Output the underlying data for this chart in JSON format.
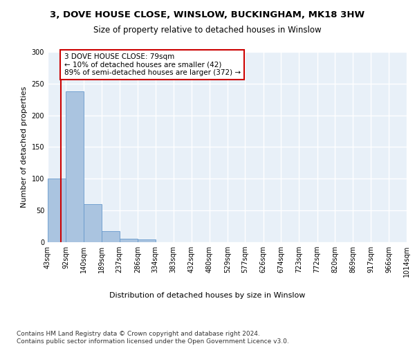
{
  "title1": "3, DOVE HOUSE CLOSE, WINSLOW, BUCKINGHAM, MK18 3HW",
  "title2": "Size of property relative to detached houses in Winslow",
  "xlabel": "Distribution of detached houses by size in Winslow",
  "ylabel": "Number of detached properties",
  "bin_edges": [
    43,
    92,
    140,
    189,
    237,
    286,
    334,
    383,
    432,
    480,
    529,
    577,
    626,
    674,
    723,
    772,
    820,
    869,
    917,
    966,
    1014
  ],
  "bar_heights": [
    100,
    238,
    60,
    17,
    6,
    4,
    0,
    0,
    0,
    0,
    0,
    0,
    0,
    0,
    0,
    0,
    0,
    0,
    0,
    0
  ],
  "bar_color": "#aac4e0",
  "bar_edge_color": "#6699cc",
  "property_size": 79,
  "property_line_color": "#cc0000",
  "annotation_line1": "3 DOVE HOUSE CLOSE: 79sqm",
  "annotation_line2": "← 10% of detached houses are smaller (42)",
  "annotation_line3": "89% of semi-detached houses are larger (372) →",
  "annotation_box_color": "#cc0000",
  "ylim": [
    0,
    300
  ],
  "yticks": [
    0,
    50,
    100,
    150,
    200,
    250,
    300
  ],
  "footnote": "Contains HM Land Registry data © Crown copyright and database right 2024.\nContains public sector information licensed under the Open Government Licence v3.0.",
  "background_color": "#e8f0f8",
  "grid_color": "#ffffff",
  "title1_fontsize": 9.5,
  "title2_fontsize": 8.5,
  "xlabel_fontsize": 8,
  "ylabel_fontsize": 8,
  "tick_fontsize": 7,
  "annotation_fontsize": 7.5,
  "footnote_fontsize": 6.5
}
